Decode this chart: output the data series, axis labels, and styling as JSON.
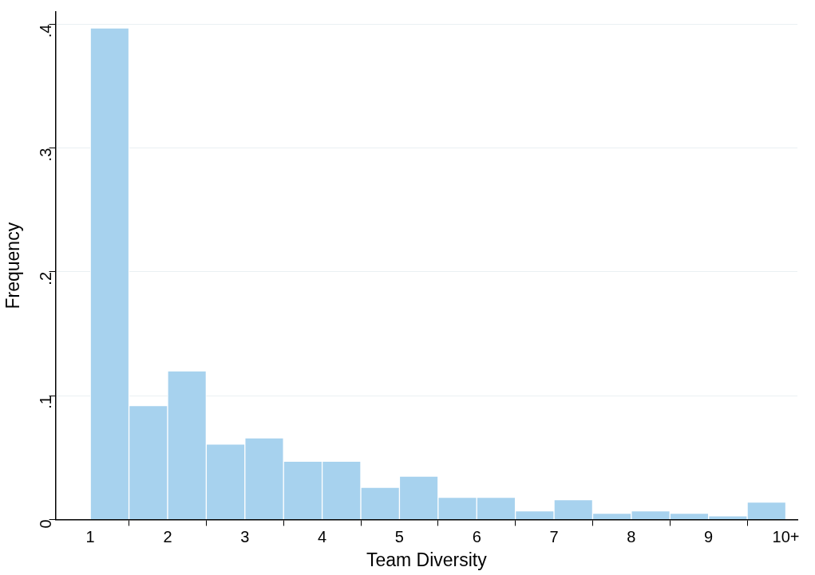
{
  "chart_data": {
    "type": "histogram",
    "xlabel": "Team Diversity",
    "ylabel": "Frequency",
    "bins": [
      1,
      1.5,
      2,
      2.5,
      3,
      3.5,
      4,
      4.5,
      5,
      5.5,
      6,
      6.5,
      7,
      7.5,
      8,
      8.5,
      9,
      9.5,
      10
    ],
    "values": [
      0.397,
      0.092,
      0.12,
      0.061,
      0.066,
      0.047,
      0.047,
      0.026,
      0.035,
      0.018,
      0.018,
      0.007,
      0.016,
      0.005,
      0.007,
      0.005,
      0.003,
      0.014
    ],
    "color": "#a7d2ee",
    "xlim": [
      0.55,
      10.15
    ],
    "xticks": [
      1,
      2,
      3,
      4,
      5,
      6,
      7,
      8,
      9,
      {
        "value": 10,
        "label": "10+"
      }
    ],
    "ylim": [
      0,
      0.41
    ],
    "yticks": [
      {
        "value": 0,
        "label": "0"
      },
      {
        "value": 0.1,
        "label": ".1"
      },
      {
        "value": 0.2,
        "label": ".2"
      },
      {
        "value": 0.3,
        "label": ".3"
      },
      {
        "value": 0.4,
        "label": ".4"
      }
    ],
    "grid": "y",
    "legend": false
  }
}
